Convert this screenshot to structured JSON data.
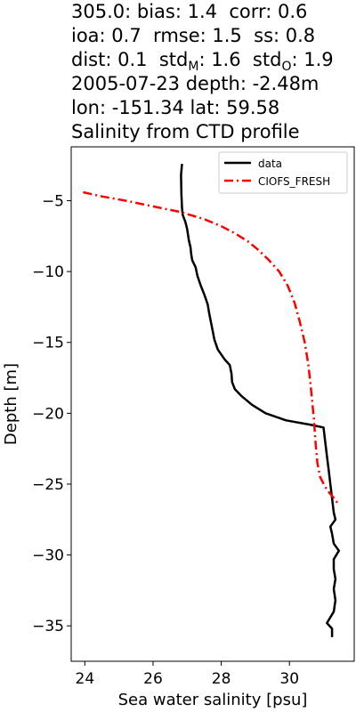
{
  "title_lines": [
    "305.0: bias: 1.4  corr: 0.6",
    "ioa: 0.7  rmse: 1.5  ss: 0.8",
    {
      "pre": "dist: 0.1  std",
      "sub1": "M",
      "mid": ": 1.6  std",
      "sub2": "O",
      "post": ": 1.9"
    },
    "2005-07-23 depth: -2.48m",
    "lon: -151.34 lat: 59.58",
    "Salinity from CTD profile"
  ],
  "chart_data": {
    "type": "line",
    "xlabel": "Sea water salinity [psu]",
    "ylabel": "Depth [m]",
    "xlim": [
      23.6,
      31.9
    ],
    "ylim": [
      -37.5,
      -1.2
    ],
    "xticks": [
      24,
      26,
      28,
      30
    ],
    "yticks": [
      -5,
      -10,
      -15,
      -20,
      -25,
      -30,
      -35
    ],
    "legend_position": "top-right",
    "series": [
      {
        "name": "data",
        "color": "#000000",
        "style": "solid",
        "x": [
          26.85,
          26.82,
          26.83,
          26.85,
          26.87,
          26.95,
          27.0,
          27.05,
          27.1,
          27.12,
          27.15,
          27.25,
          27.3,
          27.4,
          27.5,
          27.6,
          27.65,
          27.7,
          27.75,
          27.8,
          27.9,
          28.1,
          28.25,
          28.3,
          28.32,
          28.4,
          28.6,
          28.9,
          29.3,
          29.9,
          30.6,
          31.0,
          31.05,
          31.1,
          31.15,
          31.2,
          31.25,
          31.3,
          31.35,
          31.2,
          31.25,
          31.3,
          31.45,
          31.3,
          31.3,
          31.35,
          31.3,
          31.35,
          31.3,
          31.1,
          31.25,
          31.25
        ],
        "y": [
          -2.4,
          -3.2,
          -4.5,
          -5.5,
          -6.0,
          -6.5,
          -7.0,
          -7.8,
          -8.3,
          -8.8,
          -9.2,
          -9.7,
          -10.3,
          -11.0,
          -11.6,
          -12.3,
          -13.0,
          -13.6,
          -14.2,
          -14.8,
          -15.5,
          -16.2,
          -16.6,
          -17.2,
          -17.8,
          -18.3,
          -18.8,
          -19.4,
          -20.0,
          -20.5,
          -20.8,
          -21.0,
          -22.0,
          -23.0,
          -24.0,
          -25.0,
          -26.0,
          -27.0,
          -27.5,
          -28.0,
          -28.5,
          -29.2,
          -29.7,
          -30.3,
          -31.0,
          -31.7,
          -32.4,
          -33.2,
          -34.0,
          -34.8,
          -35.2,
          -35.8
        ]
      },
      {
        "name": "CIOFS_FRESH",
        "color": "#ff0000",
        "style": "dashdot",
        "x": [
          23.95,
          24.5,
          25.2,
          26.0,
          26.8,
          27.5,
          28.0,
          28.4,
          28.8,
          29.1,
          29.4,
          29.7,
          29.95,
          30.15,
          30.3,
          30.45,
          30.55,
          30.62,
          30.68,
          30.72,
          30.75,
          30.78,
          30.82,
          30.9,
          31.05,
          31.2,
          31.35,
          31.45
        ],
        "y": [
          -4.4,
          -4.7,
          -5.0,
          -5.4,
          -5.8,
          -6.3,
          -6.8,
          -7.3,
          -7.9,
          -8.5,
          -9.2,
          -10.0,
          -11.0,
          -12.2,
          -13.5,
          -15.0,
          -16.5,
          -18.0,
          -19.5,
          -20.5,
          -21.5,
          -22.5,
          -23.5,
          -24.5,
          -25.2,
          -25.7,
          -26.1,
          -26.5
        ]
      }
    ]
  }
}
